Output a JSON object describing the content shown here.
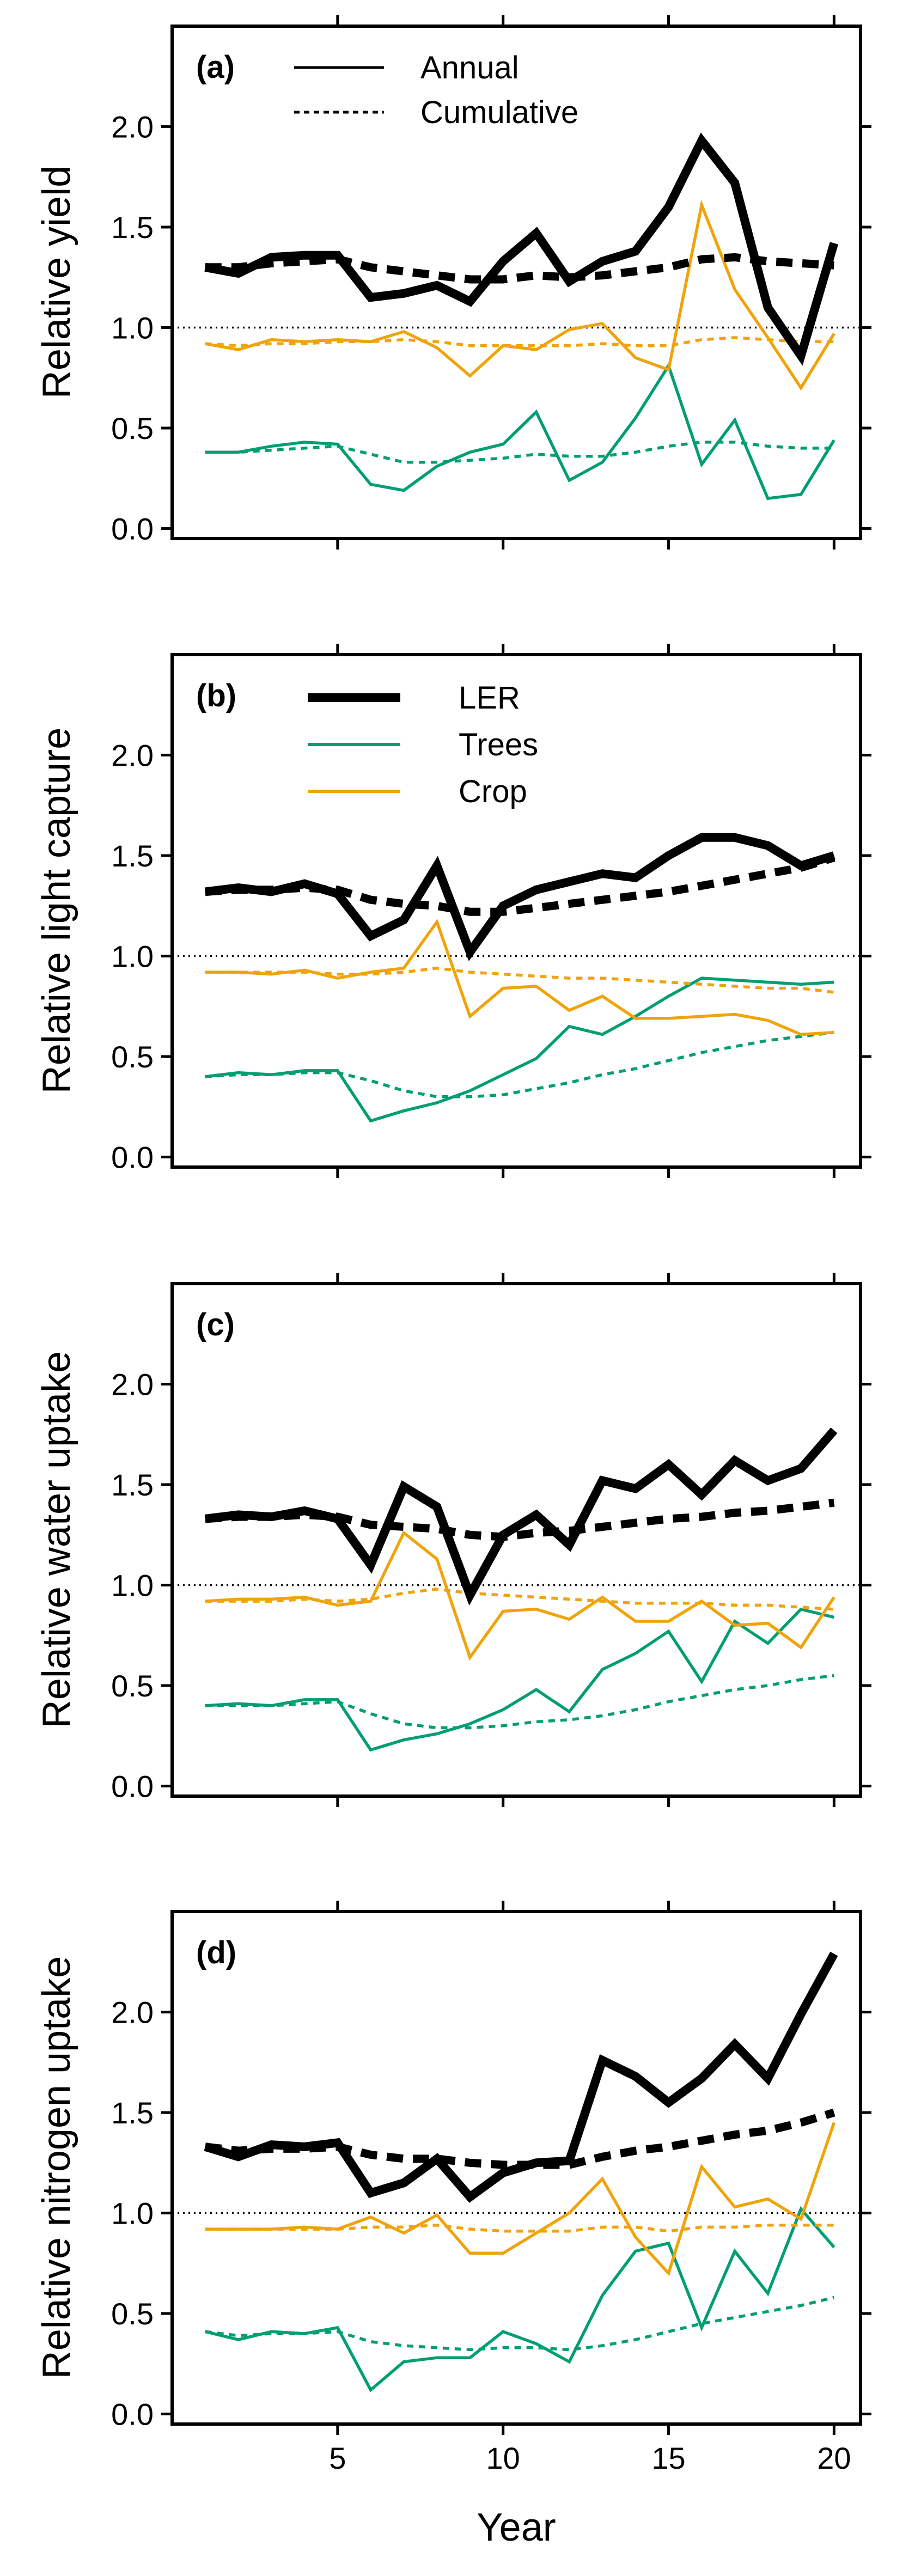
{
  "figure": {
    "xlabel": "Year",
    "x_ticks": [
      5,
      10,
      15,
      20
    ],
    "y_ticks": [
      0.0,
      0.5,
      1.0,
      1.5,
      2.0
    ],
    "y_tick_labels": [
      "0.0",
      "0.5",
      "1.0",
      "1.5",
      "2.0"
    ],
    "xlim": [
      0,
      20.8
    ],
    "ylim": [
      -0.05,
      2.5
    ],
    "reference_line": 1.0,
    "colors": {
      "LER": "#000000",
      "Trees": "#009E73",
      "Crop": "#F0A30A",
      "reference": "#000000"
    }
  },
  "legends": {
    "style": {
      "annual": "Annual",
      "cumulative": "Cumulative"
    },
    "series": {
      "ler": "LER",
      "trees": "Trees",
      "crop": "Crop"
    }
  },
  "chart_data": [
    {
      "type": "line",
      "panel_label": "(a)",
      "ylabel": "Relative yield",
      "xlabel": "",
      "x": [
        1,
        2,
        3,
        4,
        5,
        6,
        7,
        8,
        9,
        10,
        11,
        12,
        13,
        14,
        15,
        16,
        17,
        18,
        19,
        20
      ],
      "series": [
        {
          "name": "LER Annual",
          "values": [
            1.3,
            1.27,
            1.35,
            1.36,
            1.36,
            1.15,
            1.17,
            1.21,
            1.13,
            1.33,
            1.47,
            1.23,
            1.33,
            1.38,
            1.6,
            1.93,
            1.72,
            1.1,
            0.86,
            1.42
          ]
        },
        {
          "name": "LER Cumulative",
          "values": [
            1.3,
            1.3,
            1.32,
            1.33,
            1.34,
            1.3,
            1.28,
            1.26,
            1.24,
            1.24,
            1.26,
            1.25,
            1.26,
            1.28,
            1.3,
            1.34,
            1.35,
            1.33,
            1.32,
            1.31
          ]
        },
        {
          "name": "Trees Annual",
          "values": [
            0.38,
            0.38,
            0.41,
            0.43,
            0.42,
            0.22,
            0.19,
            0.31,
            0.38,
            0.42,
            0.58,
            0.24,
            0.33,
            0.55,
            0.81,
            0.32,
            0.54,
            0.15,
            0.17,
            0.44
          ]
        },
        {
          "name": "Trees Cumulative",
          "values": [
            0.38,
            0.38,
            0.39,
            0.4,
            0.41,
            0.37,
            0.33,
            0.33,
            0.34,
            0.35,
            0.37,
            0.36,
            0.36,
            0.38,
            0.41,
            0.43,
            0.43,
            0.41,
            0.4,
            0.4
          ]
        },
        {
          "name": "Crop Annual",
          "values": [
            0.92,
            0.89,
            0.94,
            0.93,
            0.94,
            0.93,
            0.98,
            0.9,
            0.76,
            0.91,
            0.89,
            0.99,
            1.02,
            0.85,
            0.79,
            1.61,
            1.19,
            0.95,
            0.7,
            0.97
          ]
        },
        {
          "name": "Crop Cumulative",
          "values": [
            0.92,
            0.91,
            0.92,
            0.92,
            0.93,
            0.93,
            0.94,
            0.93,
            0.91,
            0.91,
            0.91,
            0.91,
            0.92,
            0.91,
            0.91,
            0.94,
            0.95,
            0.94,
            0.93,
            0.93
          ]
        }
      ]
    },
    {
      "type": "line",
      "panel_label": "(b)",
      "ylabel": "Relative light capture",
      "xlabel": "",
      "x": [
        1,
        2,
        3,
        4,
        5,
        6,
        7,
        8,
        9,
        10,
        11,
        12,
        13,
        14,
        15,
        16,
        17,
        18,
        19,
        20
      ],
      "series": [
        {
          "name": "LER Annual",
          "values": [
            1.32,
            1.34,
            1.32,
            1.36,
            1.31,
            1.1,
            1.18,
            1.45,
            1.02,
            1.25,
            1.33,
            1.37,
            1.41,
            1.39,
            1.5,
            1.59,
            1.59,
            1.55,
            1.45,
            1.5
          ]
        },
        {
          "name": "LER Cumulative",
          "values": [
            1.32,
            1.33,
            1.33,
            1.34,
            1.33,
            1.28,
            1.26,
            1.25,
            1.22,
            1.22,
            1.24,
            1.26,
            1.28,
            1.3,
            1.32,
            1.35,
            1.38,
            1.41,
            1.44,
            1.49
          ]
        },
        {
          "name": "Trees Annual",
          "values": [
            0.4,
            0.42,
            0.41,
            0.43,
            0.43,
            0.18,
            0.23,
            0.27,
            0.33,
            0.41,
            0.49,
            0.65,
            0.61,
            0.7,
            0.8,
            0.89,
            0.88,
            0.87,
            0.86,
            0.87
          ]
        },
        {
          "name": "Trees Cumulative",
          "values": [
            0.4,
            0.41,
            0.41,
            0.42,
            0.42,
            0.38,
            0.33,
            0.3,
            0.3,
            0.31,
            0.34,
            0.37,
            0.41,
            0.44,
            0.48,
            0.52,
            0.55,
            0.58,
            0.6,
            0.62
          ]
        },
        {
          "name": "Crop Annual",
          "values": [
            0.92,
            0.92,
            0.91,
            0.93,
            0.89,
            0.92,
            0.94,
            1.17,
            0.7,
            0.84,
            0.85,
            0.73,
            0.8,
            0.69,
            0.69,
            0.7,
            0.71,
            0.68,
            0.61,
            0.62
          ]
        },
        {
          "name": "Crop Cumulative",
          "values": [
            0.92,
            0.92,
            0.92,
            0.92,
            0.91,
            0.91,
            0.92,
            0.94,
            0.92,
            0.91,
            0.9,
            0.89,
            0.89,
            0.88,
            0.87,
            0.86,
            0.85,
            0.84,
            0.84,
            0.82
          ]
        }
      ]
    },
    {
      "type": "line",
      "panel_label": "(c)",
      "ylabel": "Relative water uptake",
      "xlabel": "",
      "x": [
        1,
        2,
        3,
        4,
        5,
        6,
        7,
        8,
        9,
        10,
        11,
        12,
        13,
        14,
        15,
        16,
        17,
        18,
        19,
        20
      ],
      "series": [
        {
          "name": "LER Annual",
          "values": [
            1.33,
            1.35,
            1.34,
            1.37,
            1.33,
            1.1,
            1.49,
            1.39,
            0.95,
            1.25,
            1.35,
            1.2,
            1.52,
            1.48,
            1.6,
            1.45,
            1.62,
            1.52,
            1.58,
            1.77
          ]
        },
        {
          "name": "LER Cumulative",
          "values": [
            1.33,
            1.34,
            1.34,
            1.35,
            1.34,
            1.3,
            1.29,
            1.28,
            1.25,
            1.24,
            1.26,
            1.27,
            1.29,
            1.31,
            1.33,
            1.34,
            1.36,
            1.37,
            1.39,
            1.41
          ]
        },
        {
          "name": "Trees Annual",
          "values": [
            0.4,
            0.41,
            0.4,
            0.43,
            0.43,
            0.18,
            0.23,
            0.26,
            0.31,
            0.38,
            0.48,
            0.37,
            0.58,
            0.66,
            0.77,
            0.52,
            0.82,
            0.71,
            0.88,
            0.84
          ]
        },
        {
          "name": "Trees Cumulative",
          "values": [
            0.4,
            0.4,
            0.4,
            0.41,
            0.42,
            0.36,
            0.31,
            0.29,
            0.29,
            0.3,
            0.32,
            0.33,
            0.35,
            0.38,
            0.42,
            0.45,
            0.48,
            0.5,
            0.53,
            0.55
          ]
        },
        {
          "name": "Crop Annual",
          "values": [
            0.92,
            0.93,
            0.93,
            0.94,
            0.9,
            0.92,
            1.26,
            1.13,
            0.64,
            0.87,
            0.88,
            0.83,
            0.94,
            0.82,
            0.82,
            0.92,
            0.8,
            0.81,
            0.69,
            0.94
          ]
        },
        {
          "name": "Crop Cumulative",
          "values": [
            0.92,
            0.92,
            0.92,
            0.93,
            0.92,
            0.93,
            0.96,
            0.98,
            0.96,
            0.95,
            0.94,
            0.93,
            0.92,
            0.91,
            0.91,
            0.91,
            0.9,
            0.9,
            0.89,
            0.88
          ]
        }
      ]
    },
    {
      "type": "line",
      "panel_label": "(d)",
      "ylabel": "Relative nitrogen uptake",
      "xlabel": "Year",
      "x": [
        1,
        2,
        3,
        4,
        5,
        6,
        7,
        8,
        9,
        10,
        11,
        12,
        13,
        14,
        15,
        16,
        17,
        18,
        19,
        20
      ],
      "series": [
        {
          "name": "LER Annual",
          "values": [
            1.33,
            1.28,
            1.34,
            1.33,
            1.35,
            1.1,
            1.15,
            1.27,
            1.08,
            1.2,
            1.25,
            1.26,
            1.76,
            1.68,
            1.55,
            1.67,
            1.84,
            1.67,
            1.99,
            2.29
          ]
        },
        {
          "name": "LER Cumulative",
          "values": [
            1.33,
            1.31,
            1.32,
            1.32,
            1.33,
            1.29,
            1.27,
            1.27,
            1.25,
            1.24,
            1.24,
            1.24,
            1.28,
            1.31,
            1.33,
            1.36,
            1.39,
            1.41,
            1.45,
            1.5
          ]
        },
        {
          "name": "Trees Annual",
          "values": [
            0.41,
            0.37,
            0.41,
            0.4,
            0.43,
            0.12,
            0.26,
            0.28,
            0.28,
            0.41,
            0.35,
            0.26,
            0.59,
            0.81,
            0.85,
            0.43,
            0.81,
            0.6,
            1.02,
            0.83
          ]
        },
        {
          "name": "Trees Cumulative",
          "values": [
            0.41,
            0.39,
            0.4,
            0.4,
            0.41,
            0.36,
            0.34,
            0.33,
            0.32,
            0.33,
            0.33,
            0.32,
            0.34,
            0.37,
            0.41,
            0.45,
            0.48,
            0.51,
            0.54,
            0.58
          ]
        },
        {
          "name": "Crop Annual",
          "values": [
            0.92,
            0.92,
            0.92,
            0.93,
            0.92,
            0.98,
            0.9,
            0.99,
            0.8,
            0.8,
            0.9,
            1.0,
            1.17,
            0.88,
            0.7,
            1.23,
            1.03,
            1.07,
            0.97,
            1.45
          ]
        },
        {
          "name": "Crop Cumulative",
          "values": [
            0.92,
            0.92,
            0.92,
            0.92,
            0.92,
            0.93,
            0.93,
            0.94,
            0.92,
            0.91,
            0.91,
            0.91,
            0.93,
            0.93,
            0.91,
            0.93,
            0.93,
            0.94,
            0.94,
            0.94
          ]
        }
      ]
    }
  ]
}
